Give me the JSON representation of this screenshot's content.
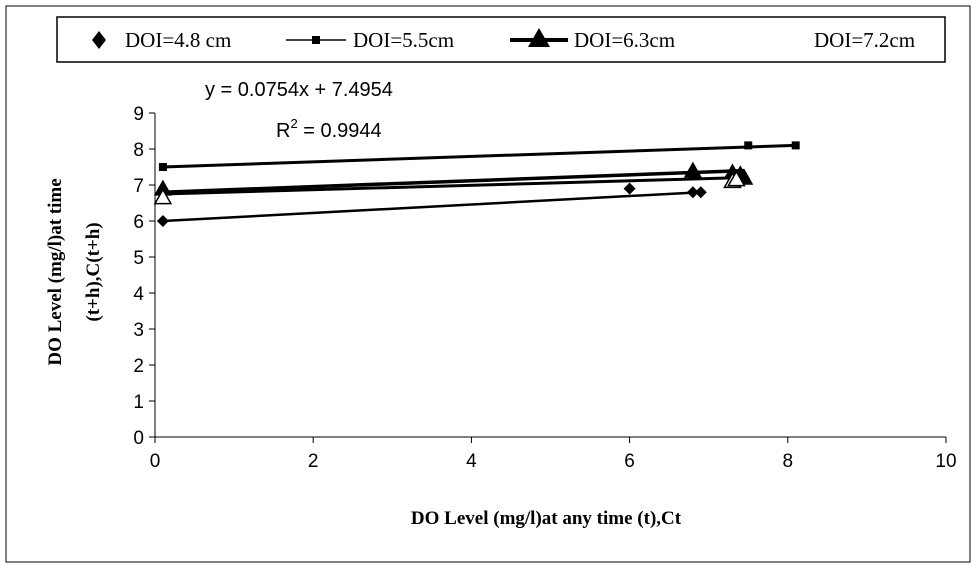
{
  "chart_data": {
    "type": "scatter",
    "title": "",
    "xlabel": "DO Level (mg/l)at any time (t),Ct",
    "ylabel_lines": [
      "DO Level (mg/l)at  time",
      "(t+h),C(t+h)"
    ],
    "xlim": [
      0,
      10
    ],
    "ylim": [
      0,
      9
    ],
    "x_ticks": [
      0,
      2,
      4,
      6,
      8,
      10
    ],
    "y_ticks": [
      0,
      1,
      2,
      3,
      4,
      5,
      6,
      7,
      8,
      9
    ],
    "grid": false,
    "legend_position": "top",
    "annotations": {
      "equation": "y = 0.0754x + 7.4954",
      "r2_prefix": "R",
      "r2_sup": "2",
      "r2_value": " = 0.9944"
    },
    "series": [
      {
        "name": "DOI=4.8 cm",
        "marker": "diamond",
        "points": [
          [
            0.1,
            6.0
          ],
          [
            6.0,
            6.9
          ],
          [
            6.8,
            6.8
          ],
          [
            6.9,
            6.8
          ]
        ],
        "trendline": [
          [
            0.1,
            6.0
          ],
          [
            6.9,
            6.8
          ]
        ]
      },
      {
        "name": "DOI=5.5cm",
        "marker": "square",
        "points": [
          [
            0.1,
            7.5
          ],
          [
            7.5,
            8.1
          ],
          [
            8.1,
            8.1
          ]
        ],
        "trendline": [
          [
            0.1,
            7.5
          ],
          [
            8.1,
            8.1
          ]
        ]
      },
      {
        "name": "DOI=6.3cm",
        "marker": "triangle",
        "points": [
          [
            0.1,
            6.9
          ],
          [
            6.8,
            7.4
          ],
          [
            7.3,
            7.35
          ],
          [
            7.4,
            7.3
          ],
          [
            7.45,
            7.2
          ]
        ],
        "trendline": [
          [
            0.1,
            6.8
          ],
          [
            7.45,
            7.4
          ]
        ]
      },
      {
        "name": "DOI=7.2cm",
        "marker": "open-triangle",
        "points": [
          [
            0.1,
            6.65
          ],
          [
            7.3,
            7.1
          ],
          [
            7.35,
            7.15
          ]
        ],
        "trendline": [
          [
            0.1,
            6.75
          ],
          [
            7.35,
            7.2
          ]
        ]
      }
    ]
  }
}
